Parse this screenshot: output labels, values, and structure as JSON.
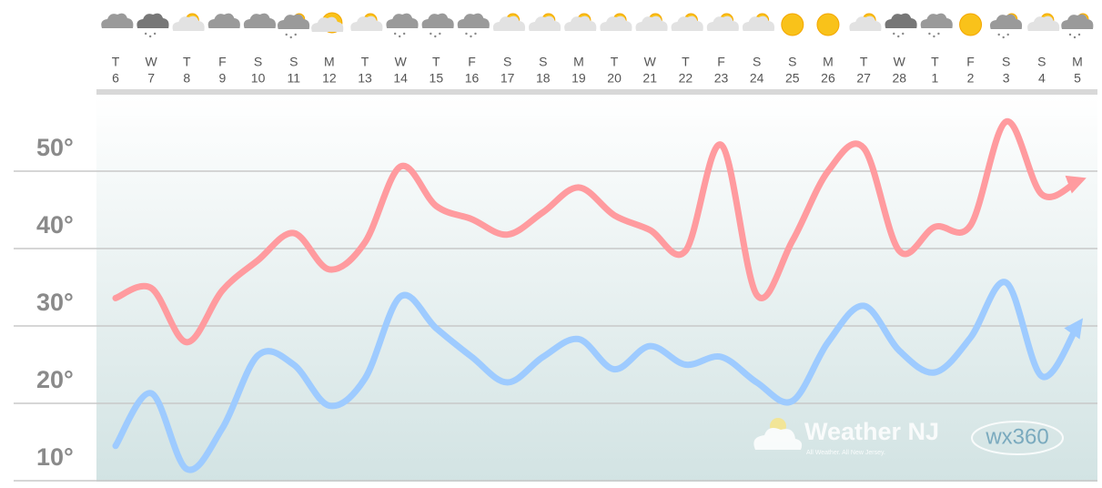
{
  "chart_data": {
    "type": "line",
    "categories": [
      [
        "T",
        "6"
      ],
      [
        "W",
        "7"
      ],
      [
        "T",
        "8"
      ],
      [
        "F",
        "9"
      ],
      [
        "S",
        "10"
      ],
      [
        "S",
        "11"
      ],
      [
        "M",
        "12"
      ],
      [
        "T",
        "13"
      ],
      [
        "W",
        "14"
      ],
      [
        "T",
        "15"
      ],
      [
        "F",
        "16"
      ],
      [
        "S",
        "17"
      ],
      [
        "S",
        "18"
      ],
      [
        "M",
        "19"
      ],
      [
        "T",
        "20"
      ],
      [
        "W",
        "21"
      ],
      [
        "T",
        "22"
      ],
      [
        "F",
        "23"
      ],
      [
        "S",
        "24"
      ],
      [
        "S",
        "25"
      ],
      [
        "M",
        "26"
      ],
      [
        "T",
        "27"
      ],
      [
        "W",
        "28"
      ],
      [
        "T",
        "1"
      ],
      [
        "F",
        "2"
      ],
      [
        "S",
        "3"
      ],
      [
        "S",
        "4"
      ],
      [
        "M",
        "5"
      ]
    ],
    "series": [
      {
        "color": "#ff9b9f",
        "values": [
          33.6,
          34.9,
          27.9,
          34.6,
          38.5,
          42,
          37.3,
          40.8,
          50.6,
          45.5,
          43.8,
          41.8,
          44.7,
          47.9,
          44.3,
          42.4,
          39.7,
          53.4,
          34,
          41,
          50,
          53,
          39.7,
          42.8,
          43,
          56.4,
          47,
          48.7
        ]
      },
      {
        "color": "#9ecbff",
        "values": [
          14.5,
          21.3,
          11.5,
          16.8,
          26.2,
          25,
          19.7,
          23.2,
          33.8,
          29.7,
          26,
          22.7,
          26,
          28.3,
          24.4,
          27.4,
          25,
          26,
          22.7,
          20.3,
          27.9,
          32.6,
          26.8,
          24,
          28.5,
          35.6,
          23.5,
          30
        ]
      }
    ],
    "ylim": [
      10,
      60
    ],
    "yticks": [
      {
        "value": 10,
        "label": "10°"
      },
      {
        "value": 20,
        "label": "20°"
      },
      {
        "value": 30,
        "label": "30°"
      },
      {
        "value": 40,
        "label": "40°"
      },
      {
        "value": 50,
        "label": "50°"
      }
    ],
    "grid": true,
    "watermark": {
      "brand": "Weather NJ",
      "tagline": "All Weather. All New Jersey.",
      "logo": "wx360"
    }
  }
}
